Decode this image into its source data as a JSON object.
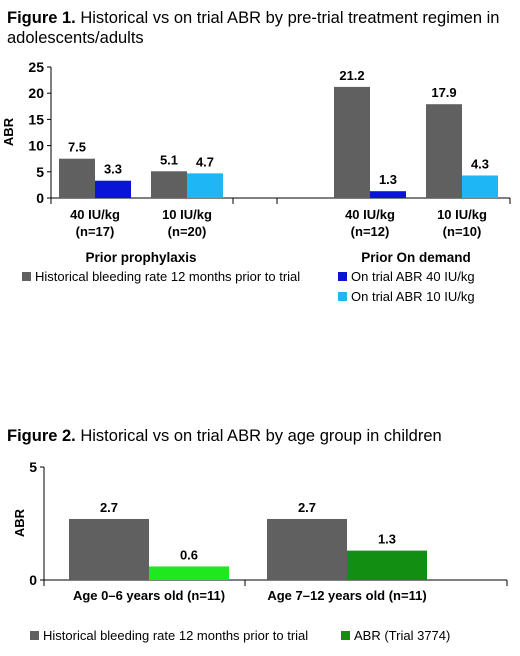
{
  "figure1": {
    "title_prefix": "Figure 1.",
    "title_text": " Historical vs on trial ABR by pre-trial treatment regimen in adolescents/adults"
  },
  "figure2": {
    "title_prefix": "Figure 2.",
    "title_text": " Historical vs on trial ABR by age group in children"
  },
  "colors": {
    "historical": "#606060",
    "trial_40": "#0a14d6",
    "trial_10": "#1fb6f5",
    "trial_3774_light": "#1ee81e",
    "trial_3774_dark": "#128f12"
  },
  "chart_data": [
    {
      "type": "bar",
      "ylabel": "ABR",
      "ylim": [
        0,
        25
      ],
      "yticks": [
        0,
        5,
        10,
        15,
        20,
        25
      ],
      "grid": false,
      "legend_position": "bottom",
      "groups": [
        {
          "name": "Prior prophylaxis",
          "categories": [
            "40 IU/kg\n(n=17)",
            "10 IU/kg\n(n=20)"
          ]
        },
        {
          "name": "Prior On demand",
          "categories": [
            "40 IU/kg\n(n=12)",
            "10 IU/kg\n(n=10)"
          ]
        }
      ],
      "categories": [
        {
          "line1": "40 IU/kg",
          "line2": "(n=17)",
          "group": "Prior prophylaxis"
        },
        {
          "line1": "10 IU/kg",
          "line2": "(n=20)",
          "group": "Prior prophylaxis"
        },
        {
          "line1": "40 IU/kg",
          "line2": "(n=12)",
          "group": "Prior On demand"
        },
        {
          "line1": "10 IU/kg",
          "line2": "(n=10)",
          "group": "Prior On demand"
        }
      ],
      "series": [
        {
          "name": "Historical bleeding rate 12 months prior to trial",
          "values": [
            7.5,
            5.1,
            21.2,
            17.9
          ]
        },
        {
          "name": "On trial ABR 40 IU/kg",
          "values": [
            3.3,
            null,
            1.3,
            null
          ]
        },
        {
          "name": "On trial ABR 10 IU/kg",
          "values": [
            null,
            4.7,
            null,
            4.3
          ]
        }
      ],
      "value_labels": [
        [
          "7.5",
          "3.3"
        ],
        [
          "5.1",
          "4.7"
        ],
        [
          "21.2",
          "1.3"
        ],
        [
          "17.9",
          "4.3"
        ]
      ]
    },
    {
      "type": "bar",
      "ylabel": "ABR",
      "ylim": [
        0,
        5
      ],
      "yticks": [
        0,
        5
      ],
      "grid": false,
      "legend_position": "bottom",
      "categories": [
        "Age 0–6 years old (n=11)",
        "Age 7–12 years old (n=11)"
      ],
      "series": [
        {
          "name": "Historical bleeding rate 12 months prior to trial",
          "values": [
            2.7,
            2.7
          ]
        },
        {
          "name": "ABR (Trial 3774)",
          "values": [
            0.6,
            1.3
          ]
        }
      ],
      "value_labels": [
        [
          "2.7",
          "0.6"
        ],
        [
          "2.7",
          "1.3"
        ]
      ]
    }
  ]
}
